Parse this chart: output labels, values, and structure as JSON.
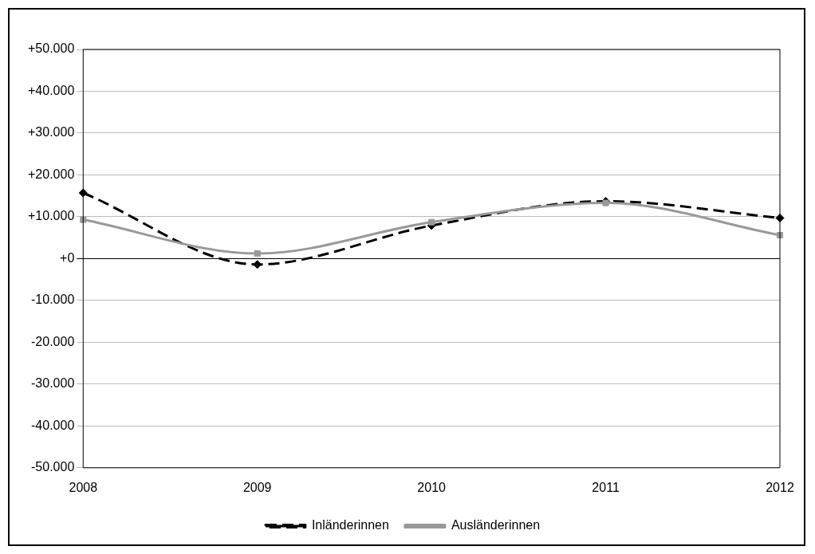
{
  "chart_data": {
    "type": "line",
    "categories": [
      "2008",
      "2009",
      "2010",
      "2011",
      "2012"
    ],
    "series": [
      {
        "name": "Inländerinnen",
        "color": "#000000",
        "values": [
          15700,
          -1400,
          7900,
          13700,
          9700
        ],
        "marker": "diamond",
        "line_style": "dashed"
      },
      {
        "name": "Ausländerinnen",
        "color": "#999999",
        "values": [
          9300,
          1200,
          8700,
          13300,
          5600
        ],
        "marker": "square",
        "line_style": "solid"
      }
    ],
    "ylim": [
      -50000,
      50000
    ],
    "yticks": [
      {
        "value": -50000,
        "label": "-50.000"
      },
      {
        "value": -40000,
        "label": "-40.000"
      },
      {
        "value": -30000,
        "label": "-30.000"
      },
      {
        "value": -20000,
        "label": "-20.000"
      },
      {
        "value": -10000,
        "label": "-10.000"
      },
      {
        "value": 0,
        "label": "+0"
      },
      {
        "value": 10000,
        "label": "+10.000"
      },
      {
        "value": 20000,
        "label": "+20.000"
      },
      {
        "value": 30000,
        "label": "+30.000"
      },
      {
        "value": 40000,
        "label": "+40.000"
      },
      {
        "value": 50000,
        "label": "+50.000"
      }
    ],
    "grid": "y",
    "legend": "bottom"
  }
}
